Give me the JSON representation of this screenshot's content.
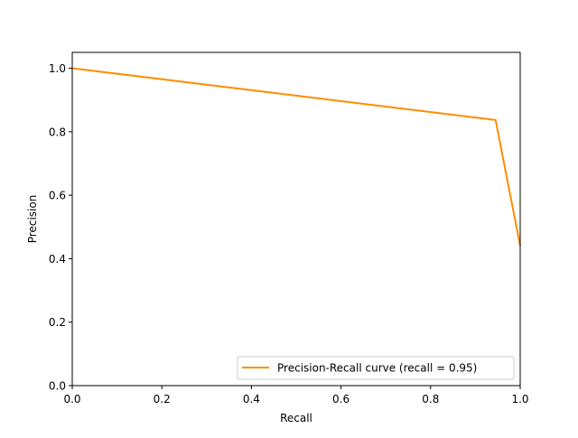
{
  "chart_data": {
    "type": "line",
    "title": "",
    "xlabel": "Recall",
    "ylabel": "Precision",
    "xlim": [
      0.0,
      1.0
    ],
    "ylim": [
      0.0,
      1.05
    ],
    "x_ticks": [
      0.0,
      0.2,
      0.4,
      0.6,
      0.8,
      1.0
    ],
    "x_tick_labels": [
      "0.0",
      "0.2",
      "0.4",
      "0.6",
      "0.8",
      "1.0"
    ],
    "y_ticks": [
      0.0,
      0.2,
      0.4,
      0.6,
      0.8,
      1.0
    ],
    "y_tick_labels": [
      "0.0",
      "0.2",
      "0.4",
      "0.6",
      "0.8",
      "1.0"
    ],
    "grid": false,
    "legend_position": "lower-right",
    "series": [
      {
        "name": "Precision-Recall curve (recall = 0.95)",
        "color": "#ff8c00",
        "x": [
          0.0,
          0.945,
          1.0
        ],
        "y": [
          1.0,
          0.837,
          0.44
        ]
      }
    ]
  }
}
